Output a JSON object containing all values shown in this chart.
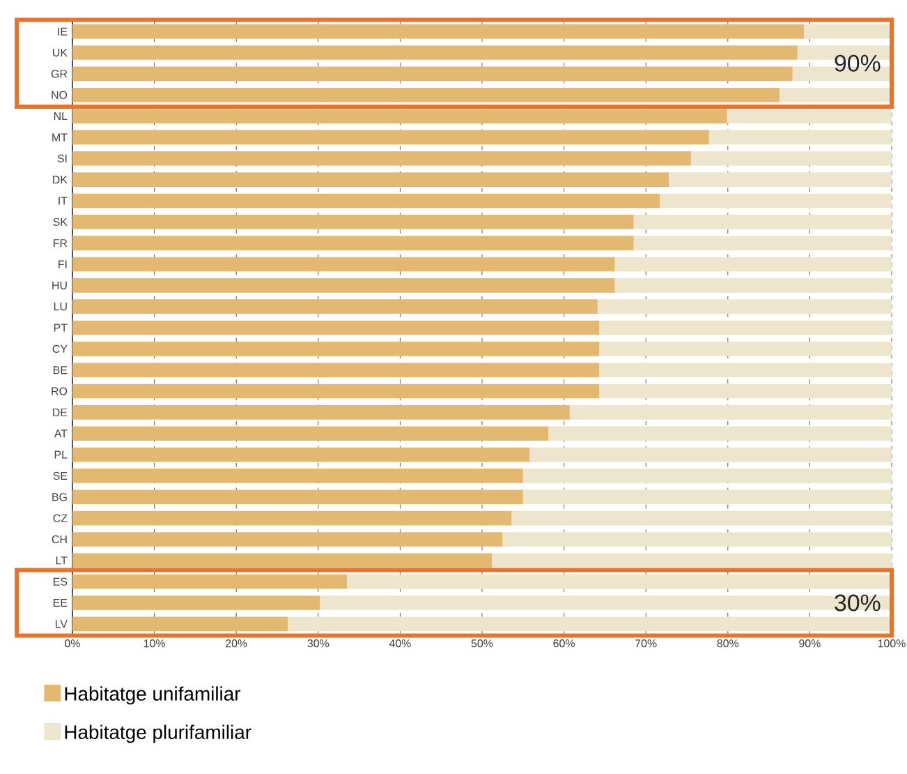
{
  "chart_data": {
    "type": "bar",
    "orientation": "horizontal",
    "stacked": true,
    "categories": [
      "IE",
      "UK",
      "GR",
      "NO",
      "NL",
      "MT",
      "SI",
      "DK",
      "IT",
      "SK",
      "FR",
      "FI",
      "HU",
      "LU",
      "PT",
      "CY",
      "BE",
      "RO",
      "DE",
      "AT",
      "PL",
      "SE",
      "BG",
      "CZ",
      "CH",
      "LT",
      "ES",
      "EE",
      "LV"
    ],
    "series": [
      {
        "name": "Habitatge unifamiliar",
        "color": "#e3b871",
        "values": [
          89.3,
          88.5,
          87.9,
          86.3,
          79.9,
          77.7,
          75.5,
          72.8,
          71.7,
          68.5,
          68.5,
          66.2,
          66.2,
          64.1,
          64.3,
          64.3,
          64.3,
          64.3,
          60.7,
          58.1,
          55.8,
          55.0,
          55.0,
          53.6,
          52.5,
          51.2,
          33.5,
          30.2,
          26.3
        ]
      },
      {
        "name": "Habitatge plurifamiliar",
        "color": "#ede5cc",
        "values": [
          10.7,
          11.5,
          12.1,
          13.7,
          20.1,
          22.3,
          24.5,
          27.2,
          28.3,
          31.5,
          31.5,
          33.8,
          33.8,
          35.9,
          35.7,
          35.7,
          35.7,
          35.7,
          39.3,
          41.9,
          44.2,
          45.0,
          45.0,
          46.4,
          47.5,
          48.8,
          66.5,
          69.8,
          73.7
        ]
      }
    ],
    "xlim": [
      0,
      100
    ],
    "xticks": [
      {
        "value": 0,
        "label": "0%"
      },
      {
        "value": 10,
        "label": "10%"
      },
      {
        "value": 20,
        "label": "20%"
      },
      {
        "value": 30,
        "label": "30%"
      },
      {
        "value": 40,
        "label": "40%"
      },
      {
        "value": 50,
        "label": "50%"
      },
      {
        "value": 60,
        "label": "60%"
      },
      {
        "value": 70,
        "label": "70%"
      },
      {
        "value": 80,
        "label": "80%"
      },
      {
        "value": 90,
        "label": "90%"
      },
      {
        "value": 100,
        "label": "100%"
      }
    ],
    "annotations": [
      "90%",
      "30%"
    ],
    "grid": "x",
    "legend": "bottom left"
  }
}
